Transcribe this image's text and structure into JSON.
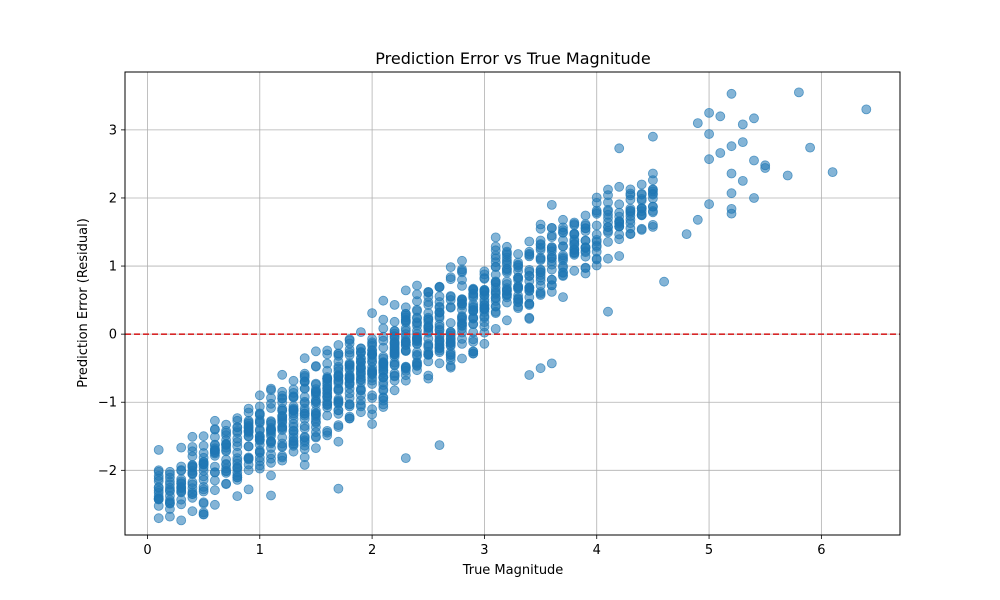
{
  "chart_data": {
    "type": "scatter",
    "title": "Prediction Error vs True Magnitude",
    "xlabel": "True Magnitude",
    "ylabel": "Prediction Error (Residual)",
    "xlim": [
      -0.2,
      6.7
    ],
    "ylim": [
      -2.95,
      3.85
    ],
    "x_ticks": [
      0,
      1,
      2,
      3,
      4,
      5,
      6
    ],
    "x_tick_labels": [
      "0",
      "1",
      "2",
      "3",
      "4",
      "5",
      "6"
    ],
    "y_ticks": [
      -2,
      -1,
      0,
      1,
      2,
      3
    ],
    "y_tick_labels": [
      "−2",
      "−1",
      "0",
      "1",
      "2",
      "3"
    ],
    "grid": true,
    "point_color": "#1f77b4",
    "point_alpha": 0.55,
    "reference_line": {
      "y": 0,
      "style": "dashed",
      "color": "#d62728"
    },
    "band": {
      "slope": 1.0,
      "intercept": -2.5,
      "x_step": 0.1,
      "x_dense_range": [
        0.1,
        4.5
      ],
      "half_width_min": 0.55,
      "half_width_max": 0.9
    },
    "outliers": [
      {
        "x": 0.1,
        "y": -2.3
      },
      {
        "x": 0.1,
        "y": -2.0
      },
      {
        "x": 0.1,
        "y": -1.7
      },
      {
        "x": 0.4,
        "y": -2.6
      },
      {
        "x": 0.4,
        "y": -2.35
      },
      {
        "x": 0.5,
        "y": -2.65
      },
      {
        "x": 0.5,
        "y": -2.47
      },
      {
        "x": 0.9,
        "y": -2.28
      },
      {
        "x": 1.1,
        "y": -2.37
      },
      {
        "x": 1.7,
        "y": -2.27
      },
      {
        "x": 2.3,
        "y": -1.82
      },
      {
        "x": 2.6,
        "y": -1.63
      },
      {
        "x": 3.4,
        "y": -0.6
      },
      {
        "x": 3.5,
        "y": -0.5
      },
      {
        "x": 3.6,
        "y": -0.43
      },
      {
        "x": 4.1,
        "y": 0.33
      },
      {
        "x": 4.6,
        "y": 0.77
      },
      {
        "x": 4.2,
        "y": 2.73
      },
      {
        "x": 4.5,
        "y": 2.9
      },
      {
        "x": 4.9,
        "y": 3.1
      },
      {
        "x": 5.0,
        "y": 3.25
      },
      {
        "x": 5.1,
        "y": 3.2
      },
      {
        "x": 5.2,
        "y": 3.53
      },
      {
        "x": 5.3,
        "y": 3.08
      },
      {
        "x": 5.4,
        "y": 3.17
      },
      {
        "x": 5.3,
        "y": 2.82
      },
      {
        "x": 5.2,
        "y": 2.76
      },
      {
        "x": 5.4,
        "y": 2.55
      },
      {
        "x": 5.5,
        "y": 2.48
      },
      {
        "x": 5.5,
        "y": 2.44
      },
      {
        "x": 5.3,
        "y": 2.25
      },
      {
        "x": 5.2,
        "y": 2.07
      },
      {
        "x": 5.4,
        "y": 2.0
      },
      {
        "x": 5.2,
        "y": 1.84
      },
      {
        "x": 5.2,
        "y": 1.77
      },
      {
        "x": 5.0,
        "y": 1.91
      },
      {
        "x": 4.9,
        "y": 1.68
      },
      {
        "x": 4.8,
        "y": 1.47
      },
      {
        "x": 5.7,
        "y": 2.33
      },
      {
        "x": 5.8,
        "y": 3.55
      },
      {
        "x": 5.9,
        "y": 2.74
      },
      {
        "x": 6.1,
        "y": 2.38
      },
      {
        "x": 6.4,
        "y": 3.3
      },
      {
        "x": 5.0,
        "y": 2.57
      },
      {
        "x": 5.0,
        "y": 2.94
      },
      {
        "x": 5.1,
        "y": 2.66
      },
      {
        "x": 5.2,
        "y": 2.36
      }
    ]
  }
}
